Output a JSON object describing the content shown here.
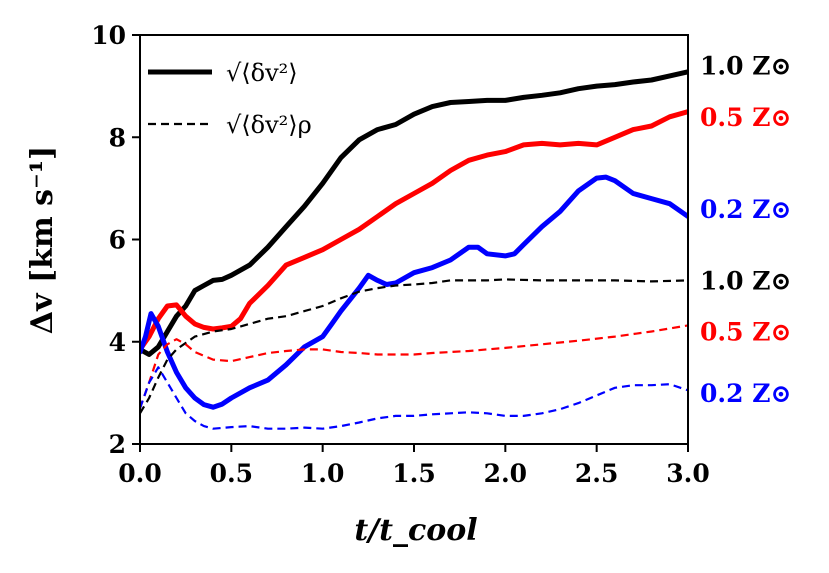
{
  "chart_data": {
    "type": "line",
    "title": "",
    "xlabel": "t/t_cool",
    "ylabel": "Δv [km s⁻¹]",
    "xlim": [
      0.0,
      3.0
    ],
    "ylim": [
      2,
      10
    ],
    "x_ticks": [
      "0.0",
      "0.5",
      "1.0",
      "1.5",
      "2.0",
      "2.5",
      "3.0"
    ],
    "y_ticks": [
      "2",
      "4",
      "6",
      "8",
      "10"
    ],
    "x_tick_values": [
      0.0,
      0.5,
      1.0,
      1.5,
      2.0,
      2.5,
      3.0
    ],
    "y_tick_values": [
      2,
      4,
      6,
      8,
      10
    ],
    "grid": false,
    "legend": {
      "position": "top-left",
      "entries": [
        {
          "label": "√⟨δv²⟩",
          "style": "solid"
        },
        {
          "label": "√⟨δv²⟩ρ",
          "style": "dashed"
        }
      ]
    },
    "series": [
      {
        "name": "1.0 Z⊙ (solid)",
        "style": "solid",
        "color": "#000000",
        "x": [
          0.0,
          0.05,
          0.1,
          0.15,
          0.2,
          0.25,
          0.3,
          0.35,
          0.4,
          0.45,
          0.5,
          0.6,
          0.7,
          0.8,
          0.9,
          1.0,
          1.1,
          1.2,
          1.3,
          1.4,
          1.5,
          1.6,
          1.7,
          1.8,
          1.9,
          2.0,
          2.1,
          2.2,
          2.3,
          2.4,
          2.5,
          2.6,
          2.7,
          2.8,
          2.9,
          3.0
        ],
        "y": [
          3.85,
          3.75,
          3.9,
          4.2,
          4.5,
          4.7,
          5.0,
          5.1,
          5.2,
          5.22,
          5.3,
          5.5,
          5.85,
          6.25,
          6.65,
          7.1,
          7.6,
          7.95,
          8.15,
          8.25,
          8.45,
          8.6,
          8.68,
          8.7,
          8.72,
          8.72,
          8.78,
          8.82,
          8.87,
          8.95,
          9.0,
          9.03,
          9.08,
          9.12,
          9.2,
          9.28
        ]
      },
      {
        "name": "0.5 Z⊙ (solid)",
        "style": "solid",
        "color": "#ff0000",
        "x": [
          0.0,
          0.05,
          0.1,
          0.15,
          0.2,
          0.25,
          0.3,
          0.35,
          0.4,
          0.45,
          0.5,
          0.55,
          0.6,
          0.7,
          0.8,
          0.9,
          1.0,
          1.1,
          1.2,
          1.3,
          1.4,
          1.5,
          1.6,
          1.7,
          1.8,
          1.9,
          2.0,
          2.1,
          2.2,
          2.3,
          2.4,
          2.5,
          2.6,
          2.7,
          2.8,
          2.9,
          3.0
        ],
        "y": [
          3.85,
          4.1,
          4.45,
          4.7,
          4.72,
          4.5,
          4.35,
          4.28,
          4.25,
          4.27,
          4.3,
          4.45,
          4.75,
          5.1,
          5.5,
          5.65,
          5.8,
          6.0,
          6.2,
          6.45,
          6.7,
          6.9,
          7.1,
          7.35,
          7.55,
          7.65,
          7.72,
          7.85,
          7.88,
          7.85,
          7.88,
          7.85,
          8.0,
          8.15,
          8.22,
          8.4,
          8.5
        ]
      },
      {
        "name": "0.2 Z⊙ (solid)",
        "style": "solid",
        "color": "#0000ff",
        "x": [
          0.0,
          0.03,
          0.06,
          0.1,
          0.15,
          0.2,
          0.25,
          0.3,
          0.35,
          0.4,
          0.45,
          0.5,
          0.6,
          0.7,
          0.8,
          0.9,
          1.0,
          1.05,
          1.1,
          1.2,
          1.25,
          1.3,
          1.35,
          1.4,
          1.5,
          1.6,
          1.7,
          1.8,
          1.85,
          1.9,
          2.0,
          2.05,
          2.1,
          2.2,
          2.3,
          2.4,
          2.5,
          2.55,
          2.6,
          2.7,
          2.8,
          2.9,
          3.0
        ],
        "y": [
          3.8,
          4.1,
          4.55,
          4.3,
          3.8,
          3.4,
          3.1,
          2.9,
          2.77,
          2.72,
          2.78,
          2.9,
          3.1,
          3.25,
          3.55,
          3.9,
          4.1,
          4.35,
          4.6,
          5.05,
          5.3,
          5.2,
          5.12,
          5.15,
          5.35,
          5.45,
          5.6,
          5.85,
          5.85,
          5.72,
          5.68,
          5.72,
          5.9,
          6.25,
          6.55,
          6.95,
          7.2,
          7.22,
          7.15,
          6.9,
          6.8,
          6.7,
          6.45
        ]
      },
      {
        "name": "1.0 Z⊙ (dashed)",
        "style": "dashed",
        "color": "#000000",
        "x": [
          0.0,
          0.05,
          0.1,
          0.15,
          0.2,
          0.3,
          0.4,
          0.5,
          0.6,
          0.7,
          0.8,
          0.9,
          1.0,
          1.1,
          1.2,
          1.3,
          1.4,
          1.5,
          1.6,
          1.7,
          1.8,
          1.9,
          2.0,
          2.2,
          2.4,
          2.6,
          2.8,
          3.0
        ],
        "y": [
          2.6,
          2.9,
          3.3,
          3.65,
          3.85,
          4.1,
          4.2,
          4.25,
          4.35,
          4.45,
          4.5,
          4.6,
          4.7,
          4.85,
          4.98,
          5.05,
          5.1,
          5.12,
          5.15,
          5.2,
          5.2,
          5.2,
          5.22,
          5.2,
          5.2,
          5.2,
          5.18,
          5.2
        ]
      },
      {
        "name": "0.5 Z⊙ (dashed)",
        "style": "dashed",
        "color": "#ff0000",
        "x": [
          0.0,
          0.05,
          0.1,
          0.15,
          0.2,
          0.25,
          0.3,
          0.4,
          0.5,
          0.6,
          0.7,
          0.8,
          0.9,
          1.0,
          1.1,
          1.2,
          1.3,
          1.4,
          1.5,
          1.6,
          1.7,
          1.8,
          1.9,
          2.0,
          2.2,
          2.4,
          2.6,
          2.8,
          3.0
        ],
        "y": [
          2.7,
          3.2,
          3.75,
          3.95,
          4.05,
          3.95,
          3.8,
          3.65,
          3.62,
          3.7,
          3.78,
          3.82,
          3.85,
          3.85,
          3.8,
          3.78,
          3.75,
          3.75,
          3.75,
          3.78,
          3.8,
          3.82,
          3.85,
          3.88,
          3.95,
          4.02,
          4.1,
          4.2,
          4.32
        ]
      },
      {
        "name": "0.2 Z⊙ (dashed)",
        "style": "dashed",
        "color": "#0000ff",
        "x": [
          0.0,
          0.05,
          0.1,
          0.15,
          0.2,
          0.25,
          0.3,
          0.35,
          0.4,
          0.5,
          0.6,
          0.7,
          0.8,
          0.9,
          1.0,
          1.1,
          1.2,
          1.3,
          1.4,
          1.5,
          1.6,
          1.7,
          1.8,
          1.9,
          2.0,
          2.1,
          2.2,
          2.3,
          2.4,
          2.5,
          2.6,
          2.7,
          2.8,
          2.9,
          3.0
        ],
        "y": [
          2.7,
          3.2,
          3.5,
          3.2,
          2.9,
          2.6,
          2.45,
          2.35,
          2.3,
          2.33,
          2.35,
          2.3,
          2.3,
          2.32,
          2.3,
          2.35,
          2.42,
          2.5,
          2.55,
          2.55,
          2.58,
          2.6,
          2.62,
          2.6,
          2.55,
          2.55,
          2.6,
          2.68,
          2.8,
          2.95,
          3.1,
          3.15,
          3.15,
          3.17,
          3.05
        ]
      }
    ],
    "right_labels": [
      {
        "text": "1.0 Z⊙",
        "color": "#000000",
        "y": 9.4
      },
      {
        "text": "0.5 Z⊙",
        "color": "#ff0000",
        "y": 8.4
      },
      {
        "text": "0.2 Z⊙",
        "color": "#0000ff",
        "y": 6.6
      },
      {
        "text": "1.0 Z⊙",
        "color": "#000000",
        "y": 5.2
      },
      {
        "text": "0.5 Z⊙",
        "color": "#ff0000",
        "y": 4.2
      },
      {
        "text": "0.2 Z⊙",
        "color": "#0000ff",
        "y": 3.0
      }
    ]
  }
}
